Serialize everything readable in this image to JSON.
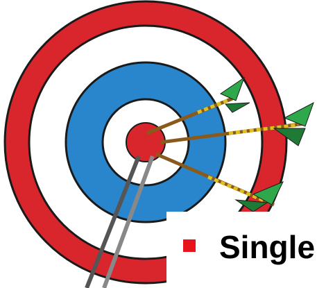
{
  "slide": {
    "bullet": "Single"
  }
}
